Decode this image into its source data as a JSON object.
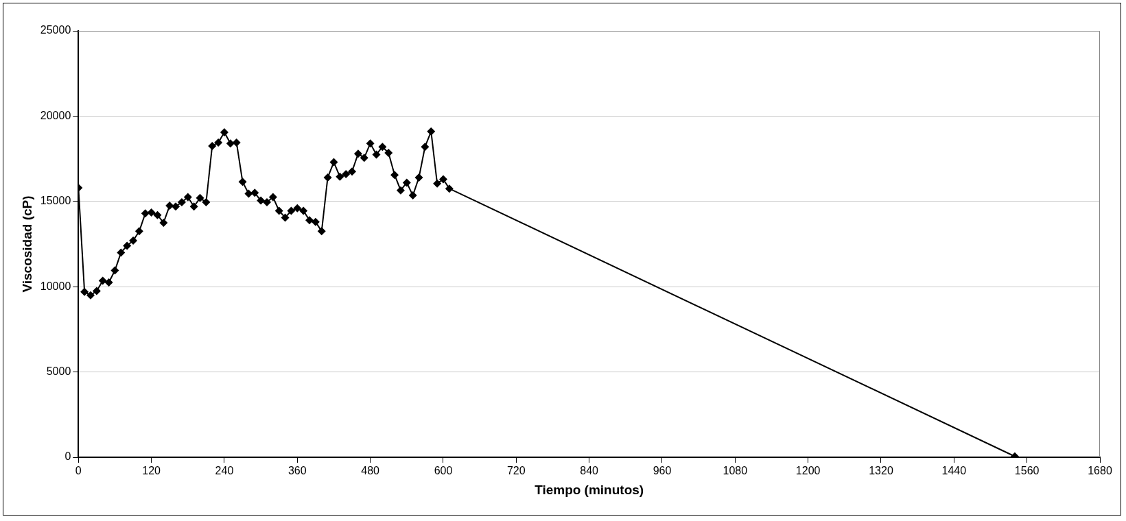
{
  "chart_data": {
    "type": "line",
    "xlabel": "Tiempo (minutos)",
    "ylabel": "Viscosidad (cP)",
    "x": [
      0,
      10,
      20,
      30,
      40,
      50,
      60,
      70,
      80,
      90,
      100,
      110,
      120,
      130,
      140,
      150,
      160,
      170,
      180,
      190,
      200,
      210,
      220,
      230,
      240,
      250,
      260,
      270,
      280,
      290,
      300,
      310,
      320,
      330,
      340,
      350,
      360,
      370,
      380,
      390,
      400,
      410,
      420,
      430,
      440,
      450,
      460,
      470,
      480,
      490,
      500,
      510,
      520,
      530,
      540,
      550,
      560,
      570,
      580,
      590,
      600,
      610,
      1540
    ],
    "series": [
      {
        "color": "#000000",
        "values": [
          15800,
          9700,
          9500,
          9750,
          10350,
          10250,
          10950,
          12000,
          12400,
          12700,
          13250,
          14300,
          14350,
          14200,
          13750,
          14750,
          14700,
          14950,
          15250,
          14700,
          15200,
          14950,
          18250,
          18450,
          19050,
          18400,
          18450,
          16150,
          15450,
          15500,
          15050,
          14950,
          15250,
          14450,
          14050,
          14450,
          14600,
          14450,
          13900,
          13800,
          13250,
          16400,
          17300,
          16450,
          16600,
          16750,
          17800,
          17550,
          18400,
          17750,
          18200,
          17850,
          16550,
          15650,
          16100,
          15350,
          16400,
          18200,
          19100,
          16050,
          16300,
          15750,
          50
        ]
      }
    ],
    "xlim": [
      0,
      1680
    ],
    "xticks": [
      0,
      120,
      240,
      360,
      480,
      600,
      720,
      840,
      960,
      1080,
      1200,
      1320,
      1440,
      1560,
      1680
    ],
    "ylim": [
      0,
      25000
    ],
    "yticks": [
      0,
      5000,
      10000,
      15000,
      20000,
      25000
    ],
    "grid": "y",
    "legend": false,
    "marker": "diamond",
    "line_style": "solid"
  }
}
